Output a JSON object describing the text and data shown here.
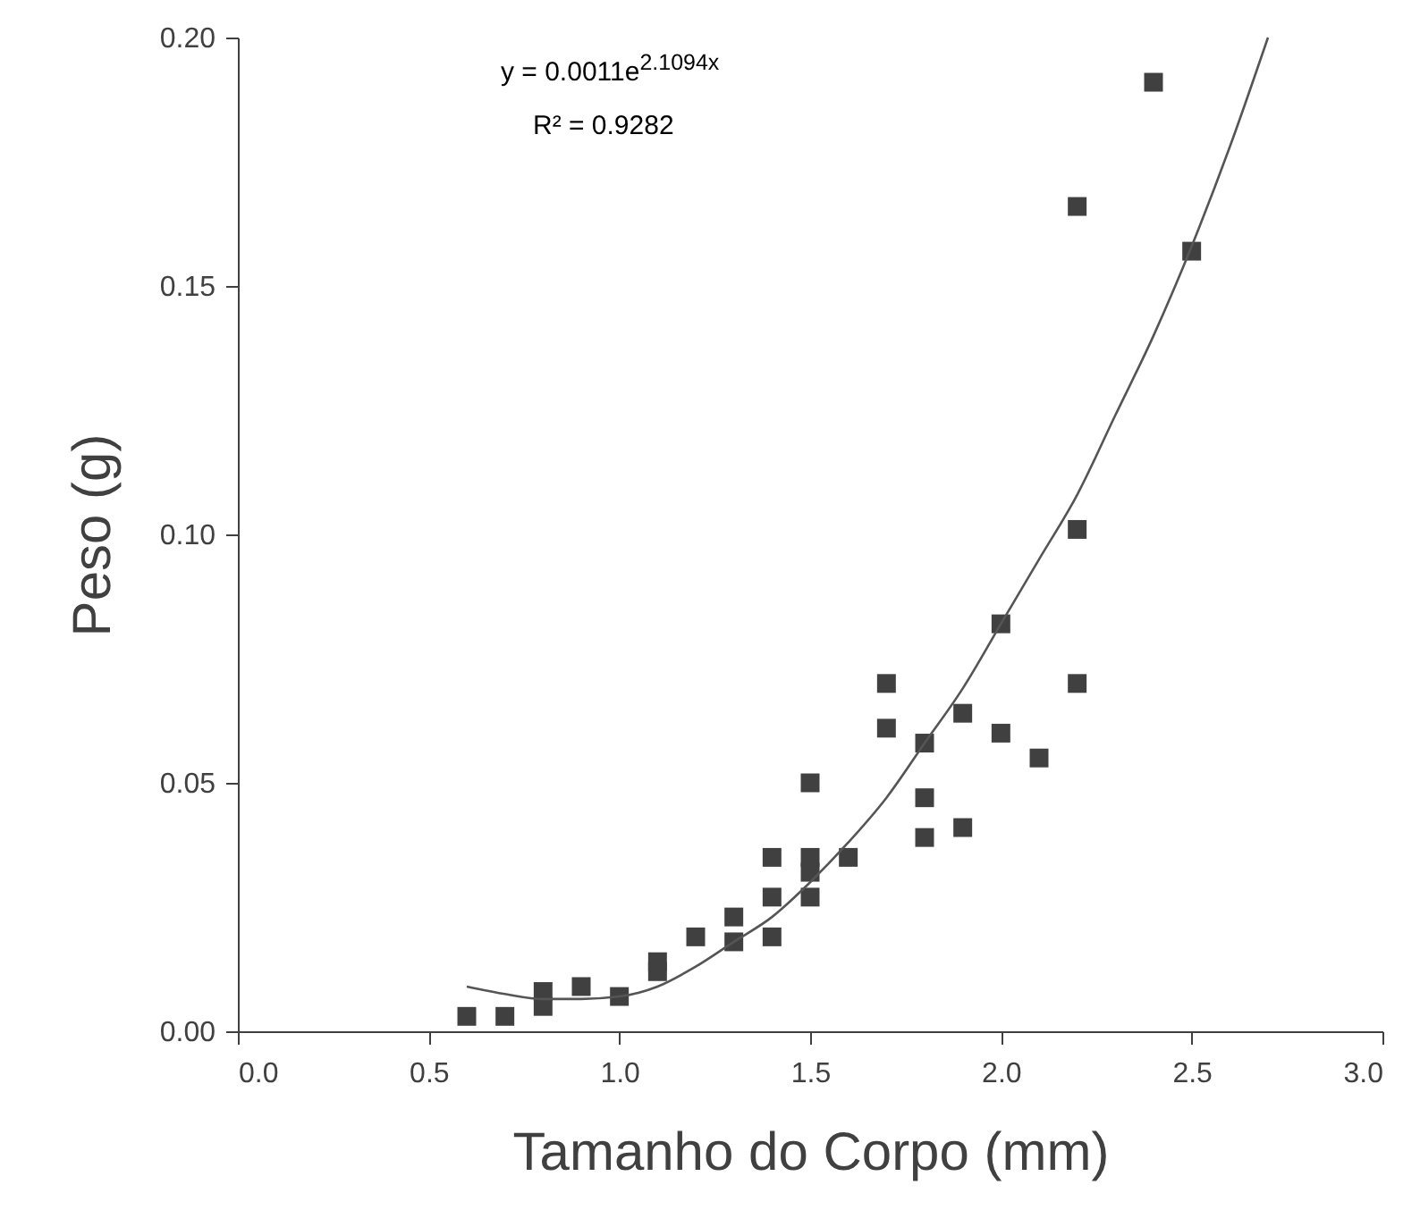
{
  "chart_data": {
    "type": "scatter",
    "xlabel": "Tamanho do Corpo (mm)",
    "ylabel": "Peso (g)",
    "annotations": [
      "y = 0.0011e$^{2.1094x}$",
      "R² = 0.9282"
    ],
    "xlim": [
      0,
      3
    ],
    "xticks": [
      {
        "value": 0,
        "label": "0.0"
      },
      {
        "value": 0.5,
        "label": "0.5"
      },
      {
        "value": 1,
        "label": "1.0"
      },
      {
        "value": 1.5,
        "label": "1.5"
      },
      {
        "value": 2,
        "label": "2.0"
      },
      {
        "value": 2.5,
        "label": "2.5"
      },
      {
        "value": 3,
        "label": "3.0"
      }
    ],
    "ylim": [
      0,
      0.2
    ],
    "yticks": [
      {
        "value": 0,
        "label": "0.00"
      },
      {
        "value": 0.05,
        "label": "0.05"
      },
      {
        "value": 0.1,
        "label": "0.10"
      },
      {
        "value": 0.15,
        "label": "0.15"
      },
      {
        "value": 0.2,
        "label": "0.20"
      }
    ],
    "grid": false,
    "legend": false,
    "series": [
      {
        "marker": "square",
        "color": "#404040",
        "x": [
          0.6,
          0.7,
          0.8,
          0.8,
          0.9,
          1.0,
          1.1,
          1.1,
          1.2,
          1.3,
          1.3,
          1.4,
          1.4,
          1.4,
          1.5,
          1.5,
          1.5,
          1.5,
          1.6,
          1.7,
          1.7,
          1.8,
          1.8,
          1.8,
          1.9,
          1.9,
          2.0,
          2.0,
          2.1,
          2.2,
          2.2,
          2.2,
          2.4,
          2.5
        ],
        "values": [
          0.003,
          0.003,
          0.008,
          0.005,
          0.009,
          0.007,
          0.014,
          0.012,
          0.019,
          0.023,
          0.018,
          0.035,
          0.027,
          0.019,
          0.05,
          0.035,
          0.032,
          0.027,
          0.035,
          0.07,
          0.061,
          0.058,
          0.047,
          0.039,
          0.064,
          0.041,
          0.082,
          0.06,
          0.055,
          0.07,
          0.101,
          0.166,
          0.191,
          0.157
        ]
      },
      {
        "type": "line",
        "marker": "none",
        "line_style": "solid",
        "color": "#555555",
        "x": [
          0.6,
          0.7,
          0.8,
          0.9,
          1.0,
          1.1,
          1.2,
          1.3,
          1.4,
          1.5,
          1.6,
          1.7,
          1.8,
          1.9,
          2.0,
          2.1,
          2.2,
          2.3,
          2.4,
          2.5,
          2.6,
          2.7
        ],
        "values": [
          0.009,
          0.0075,
          0.0065,
          0.0065,
          0.007,
          0.009,
          0.013,
          0.018,
          0.023,
          0.03,
          0.038,
          0.047,
          0.058,
          0.069,
          0.082,
          0.095,
          0.108,
          0.124,
          0.14,
          0.158,
          0.178,
          0.2
        ]
      }
    ]
  }
}
